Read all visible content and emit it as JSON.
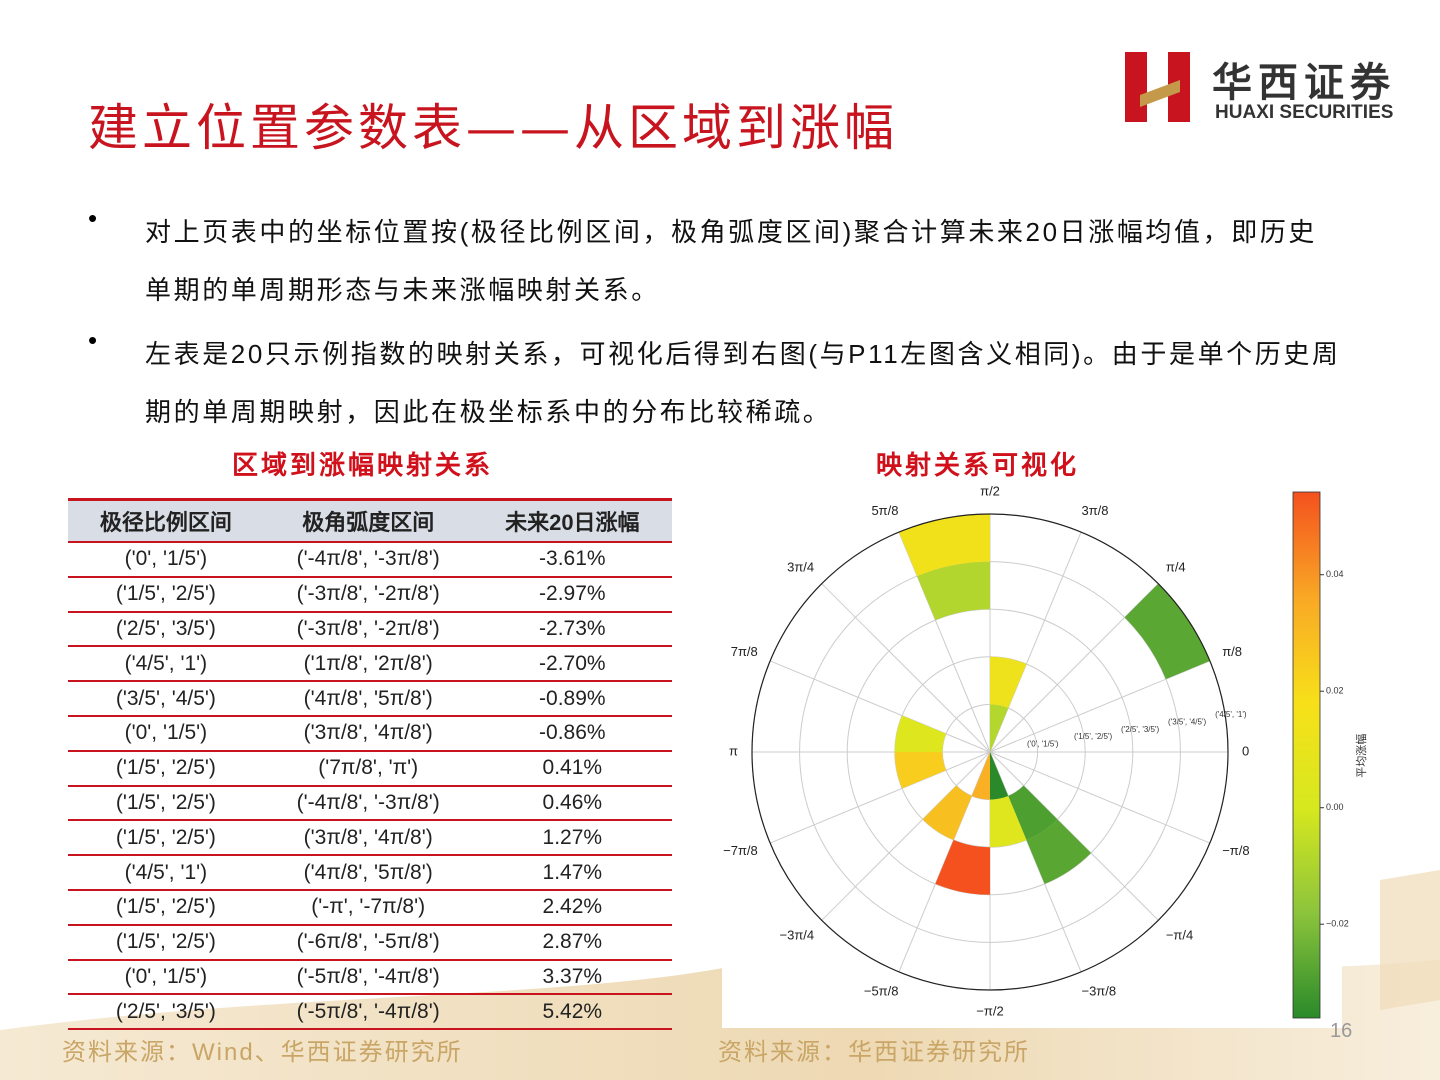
{
  "header": {
    "title": "建立位置参数表——从区域到涨幅",
    "logo_cn": "华西证券",
    "logo_en": "HUAXI SECURITIES"
  },
  "bullets": [
    "对上页表中的坐标位置按(极径比例区间，极角弧度区间)聚合计算未来20日涨幅均值，即历史单期的单周期形态与未来涨幅映射关系。",
    "左表是20只示例指数的映射关系，可视化后得到右图(与P11左图含义相同)。由于是单个历史周期的单周期映射，因此在极坐标系中的分布比较稀疏。"
  ],
  "table": {
    "title": "区域到涨幅映射关系",
    "columns": [
      "极径比例区间",
      "极角弧度区间",
      "未来20日涨幅"
    ],
    "rows": [
      [
        "('0', '1/5')",
        "('-4π/8', '-3π/8')",
        "-3.61%"
      ],
      [
        "('1/5', '2/5')",
        "('-3π/8', '-2π/8')",
        "-2.97%"
      ],
      [
        "('2/5', '3/5')",
        "('-3π/8', '-2π/8')",
        "-2.73%"
      ],
      [
        "('4/5', '1')",
        "('1π/8', '2π/8')",
        "-2.70%"
      ],
      [
        "('3/5', '4/5')",
        "('4π/8', '5π/8')",
        "-0.89%"
      ],
      [
        "('0', '1/5')",
        "('3π/8', '4π/8')",
        "-0.86%"
      ],
      [
        "('1/5', '2/5')",
        "('7π/8', 'π')",
        "0.41%"
      ],
      [
        "('1/5', '2/5')",
        "('-4π/8', '-3π/8')",
        "0.46%"
      ],
      [
        "('1/5', '2/5')",
        "('3π/8', '4π/8')",
        "1.27%"
      ],
      [
        "('4/5', '1')",
        "('4π/8', '5π/8')",
        "1.47%"
      ],
      [
        "('1/5', '2/5')",
        "('-π', '-7π/8')",
        "2.42%"
      ],
      [
        "('1/5', '2/5')",
        "('-6π/8', '-5π/8')",
        "2.87%"
      ],
      [
        "('0', '1/5')",
        "('-5π/8', '-4π/8')",
        "3.37%"
      ],
      [
        "('2/5', '3/5')",
        "('-5π/8', '-4π/8')",
        "5.42%"
      ]
    ]
  },
  "chart_data": {
    "type": "polar-sector",
    "title": "映射关系可视化",
    "rlim": [
      0,
      1
    ],
    "rticks": [
      {
        "value": 0.2,
        "label": "('0', '1/5')"
      },
      {
        "value": 0.4,
        "label": "('1/5', '2/5')"
      },
      {
        "value": 0.6,
        "label": "('2/5', '3/5')"
      },
      {
        "value": 0.8,
        "label": "('3/5', '4/5')"
      },
      {
        "value": 1,
        "label": "('4/5', '1')"
      }
    ],
    "thetaticks": [
      0,
      {
        "value": 0.125,
        "label": "π/8"
      },
      {
        "value": 0.25,
        "label": "π/4"
      },
      {
        "value": 0.375,
        "label": "3π/8"
      },
      {
        "value": 0.5,
        "label": "π/2"
      },
      {
        "value": 0.625,
        "label": "5π/8"
      },
      {
        "value": 0.75,
        "label": "3π/4"
      },
      {
        "value": 0.875,
        "label": "7π/8"
      },
      {
        "value": 1,
        "label": "π"
      },
      {
        "value": -0.875,
        "label": "−7π/8"
      },
      {
        "value": -0.75,
        "label": "−3π/4"
      },
      {
        "value": -0.625,
        "label": "−5π/8"
      },
      {
        "value": -0.5,
        "label": "−π/2"
      },
      {
        "value": -0.375,
        "label": "−3π/8"
      },
      {
        "value": -0.25,
        "label": "−π/4"
      },
      {
        "value": -0.125,
        "label": "−π/8"
      }
    ],
    "sectors": [
      {
        "r": [
          0,
          0.2
        ],
        "theta": [
          -0.5,
          -0.375
        ],
        "value": -0.0361
      },
      {
        "r": [
          0.2,
          0.4
        ],
        "theta": [
          -0.375,
          -0.25
        ],
        "value": -0.0297
      },
      {
        "r": [
          0.4,
          0.6
        ],
        "theta": [
          -0.375,
          -0.25
        ],
        "value": -0.0273
      },
      {
        "r": [
          0.8,
          1
        ],
        "theta": [
          0.125,
          0.25
        ],
        "value": -0.027
      },
      {
        "r": [
          0.6,
          0.8
        ],
        "theta": [
          0.5,
          0.625
        ],
        "value": -0.0089
      },
      {
        "r": [
          0,
          0.2
        ],
        "theta": [
          0.375,
          0.5
        ],
        "value": -0.0086
      },
      {
        "r": [
          0.2,
          0.4
        ],
        "theta": [
          0.875,
          1
        ],
        "value": 0.0041
      },
      {
        "r": [
          0.2,
          0.4
        ],
        "theta": [
          -0.5,
          -0.375
        ],
        "value": 0.0046
      },
      {
        "r": [
          0.2,
          0.4
        ],
        "theta": [
          0.375,
          0.5
        ],
        "value": 0.0127
      },
      {
        "r": [
          0.8,
          1
        ],
        "theta": [
          0.5,
          0.625
        ],
        "value": 0.0147
      },
      {
        "r": [
          0.2,
          0.4
        ],
        "theta": [
          -1,
          -0.875
        ],
        "value": 0.0242
      },
      {
        "r": [
          0.2,
          0.4
        ],
        "theta": [
          -0.75,
          -0.625
        ],
        "value": 0.0287
      },
      {
        "r": [
          0,
          0.2
        ],
        "theta": [
          -0.625,
          -0.5
        ],
        "value": 0.0337
      },
      {
        "r": [
          0.4,
          0.6
        ],
        "theta": [
          -0.625,
          -0.5
        ],
        "value": 0.0542
      }
    ],
    "colorbar": {
      "label": "平均涨幅",
      "clim": [
        -0.0361,
        0.0542
      ],
      "ticks": [
        0.04,
        0.02,
        {
          "value": 0,
          "label": "0.00"
        },
        {
          "value": -0.02,
          "label": "−0.02"
        }
      ],
      "colormap": [
        "#2a8a2a",
        "#8cc43c",
        "#d7e81e",
        "#f7e01a",
        "#f9a825",
        "#f4511e"
      ]
    },
    "grid": true
  },
  "footer": {
    "sources": [
      "资料来源：Wind、华西证券研究所",
      "资料来源：华西证券研究所"
    ],
    "page": "16"
  }
}
